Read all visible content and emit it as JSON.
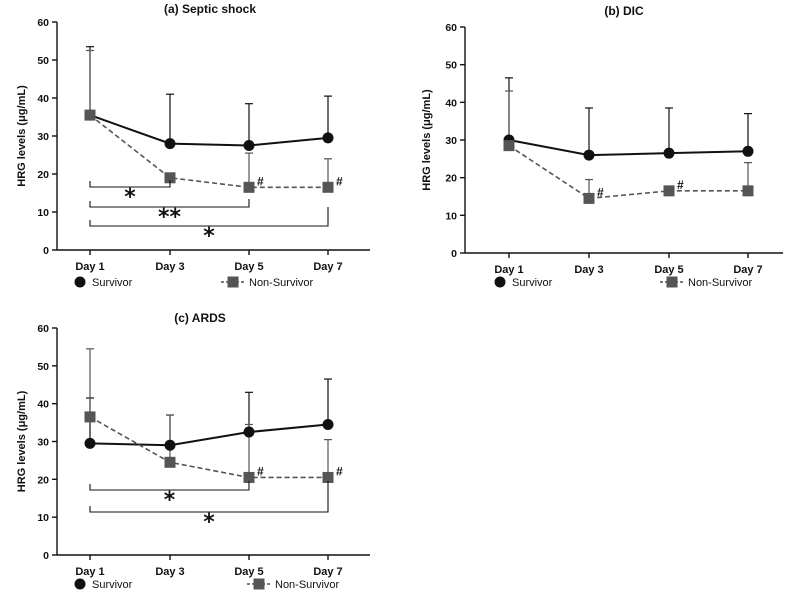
{
  "legend": {
    "survivor": "Survivor",
    "non_survivor": "Non-Survivor"
  },
  "colors": {
    "survivor": "#111111",
    "non_survivor": "#555555"
  },
  "chart_data": [
    {
      "id": "a",
      "type": "line",
      "title": "(a) Septic shock",
      "ylabel": "HRG levels (μg/mL)",
      "ylim": [
        0,
        60
      ],
      "yticks": [
        0,
        10,
        20,
        30,
        40,
        50,
        60
      ],
      "categories": [
        "Day 1",
        "Day 3",
        "Day 5",
        "Day 7"
      ],
      "series": [
        {
          "name": "Survivor",
          "marker": "circle",
          "style": "solid",
          "values": [
            35.5,
            28,
            27.5,
            29.5
          ],
          "error": [
            18,
            13,
            11,
            11
          ]
        },
        {
          "name": "Non-Survivor",
          "marker": "square",
          "style": "dashed",
          "values": [
            35.5,
            19,
            16.5,
            16.5
          ],
          "error": [
            17,
            0,
            9,
            7.5
          ]
        }
      ],
      "hash_marks": [
        2,
        3
      ],
      "brackets": [
        {
          "from": 0,
          "to": 1,
          "label": "*"
        },
        {
          "from": 0,
          "to": 2,
          "label": "**"
        },
        {
          "from": 0,
          "to": 3,
          "label": "*"
        }
      ]
    },
    {
      "id": "b",
      "type": "line",
      "title": "(b) DIC",
      "ylabel": "HRG levels (μg/mL)",
      "ylim": [
        0,
        60
      ],
      "yticks": [
        0,
        10,
        20,
        30,
        40,
        50,
        60
      ],
      "categories": [
        "Day 1",
        "Day 3",
        "Day 5",
        "Day 7"
      ],
      "series": [
        {
          "name": "Survivor",
          "marker": "circle",
          "style": "solid",
          "values": [
            30,
            26,
            26.5,
            27
          ],
          "error": [
            16.5,
            12.5,
            12,
            10
          ]
        },
        {
          "name": "Non-Survivor",
          "marker": "square",
          "style": "dashed",
          "values": [
            28.5,
            14.5,
            16.5,
            16.5
          ],
          "error": [
            14.5,
            5,
            0,
            7.5
          ]
        }
      ],
      "hash_marks": [
        1,
        2
      ],
      "brackets": []
    },
    {
      "id": "c",
      "type": "line",
      "title": "(c) ARDS",
      "ylabel": "HRG levels (μg/mL)",
      "ylim": [
        0,
        60
      ],
      "yticks": [
        0,
        10,
        20,
        30,
        40,
        50,
        60
      ],
      "categories": [
        "Day 1",
        "Day 3",
        "Day 5",
        "Day 7"
      ],
      "series": [
        {
          "name": "Survivor",
          "marker": "circle",
          "style": "solid",
          "values": [
            29.5,
            29,
            32.5,
            34.5
          ],
          "error": [
            12,
            8,
            10.5,
            12
          ]
        },
        {
          "name": "Non-Survivor",
          "marker": "square",
          "style": "dashed",
          "values": [
            36.5,
            24.5,
            20.5,
            20.5
          ],
          "error": [
            18,
            12.5,
            14,
            10
          ]
        }
      ],
      "hash_marks": [
        2,
        3
      ],
      "brackets": [
        {
          "from": 0,
          "to": 2,
          "label": "*"
        },
        {
          "from": 0,
          "to": 3,
          "label": "*"
        }
      ]
    }
  ]
}
